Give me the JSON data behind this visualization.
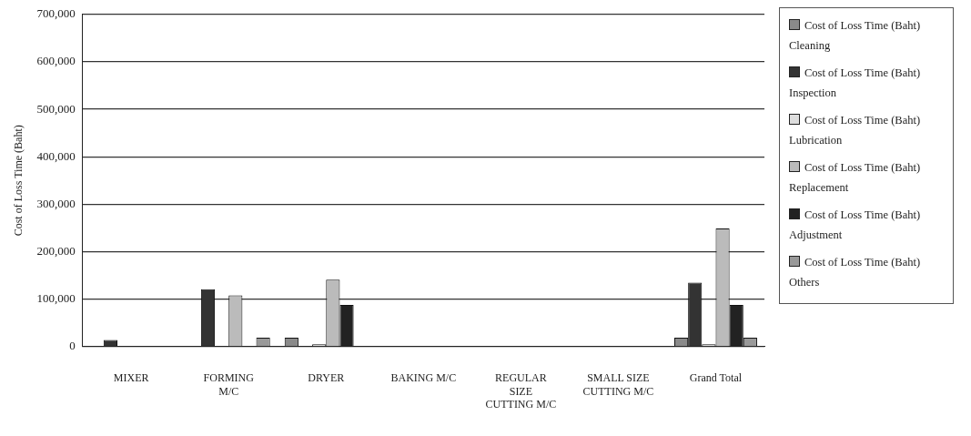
{
  "chart_data": {
    "type": "bar",
    "ylabel": "Cost of Loss Time (Baht)",
    "categories": [
      "MIXER",
      "FORMING M/C",
      "DRYER",
      "BAKING M/C",
      "REGULAR SIZE CUTTING M/C",
      "SMALL SIZE CUTTING M/C",
      "Grand Total"
    ],
    "series": [
      {
        "name": "Cost of Loss Time (Baht) Cleaning",
        "color": "#8a8a8a",
        "values": [
          0,
          0,
          19000,
          0,
          0,
          0,
          19000
        ]
      },
      {
        "name": "Cost of Loss Time (Baht) Inspection",
        "color": "#333333",
        "values": [
          14000,
          121000,
          0,
          0,
          0,
          0,
          135000
        ]
      },
      {
        "name": "Cost of Loss Time (Baht) Lubrication",
        "color": "#dddddd",
        "values": [
          0,
          0,
          5000,
          0,
          0,
          0,
          5000
        ]
      },
      {
        "name": "Cost of Loss Time (Baht) Replacement",
        "color": "#bbbbbb",
        "values": [
          0,
          108000,
          141000,
          0,
          0,
          0,
          249000
        ]
      },
      {
        "name": "Cost of Loss Time (Baht) Adjustment",
        "color": "#222222",
        "values": [
          0,
          0,
          88000,
          0,
          0,
          0,
          88000
        ]
      },
      {
        "name": "Cost of Loss Time (Baht) Others",
        "color": "#999999",
        "values": [
          0,
          19000,
          0,
          0,
          0,
          0,
          19000
        ]
      }
    ],
    "ylim": [
      0,
      700000
    ],
    "yticks": [
      0,
      {
        "value": 100000,
        "label": "100,000"
      },
      {
        "value": 200000,
        "label": "200,000"
      },
      {
        "value": 300000,
        "label": "300,000"
      },
      {
        "value": 400000,
        "label": "400,000"
      },
      {
        "value": 500000,
        "label": "500,000"
      },
      {
        "value": 600000,
        "label": "600,000"
      },
      {
        "value": 700000,
        "label": "700,000"
      }
    ],
    "grid": "y",
    "legend": "right"
  }
}
